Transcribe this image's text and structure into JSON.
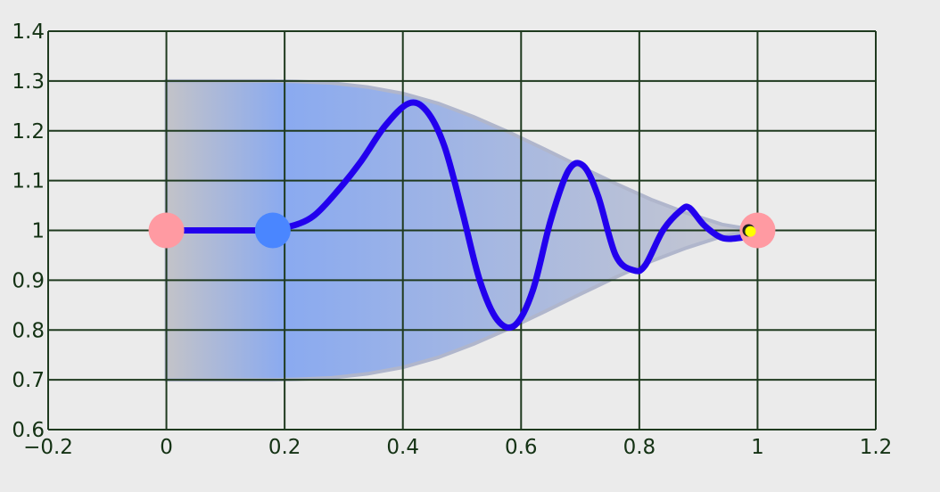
{
  "chart_data": {
    "type": "line",
    "title": "",
    "xlabel": "",
    "ylabel": "",
    "xlim": [
      -0.2,
      1.2
    ],
    "ylim": [
      0.6,
      1.4
    ],
    "grid": true,
    "x_ticks": [
      -0.2,
      0,
      0.2,
      0.4,
      0.6,
      0.8,
      1,
      1.2
    ],
    "x_tick_labels": [
      "−0.2",
      "0",
      "0.2",
      "0.4",
      "0.6",
      "0.8",
      "1",
      "1.2"
    ],
    "y_ticks": [
      0.6,
      0.7,
      0.8,
      0.9,
      1,
      1.1,
      1.2,
      1.3,
      1.4
    ],
    "y_tick_labels": [
      "0.6",
      "0.7",
      "0.8",
      "0.9",
      "1",
      "1.1",
      "1.2",
      "1.3",
      "1.4"
    ],
    "envelope": {
      "x": [
        0,
        0.18,
        0.22,
        0.28,
        0.34,
        0.4,
        0.46,
        0.52,
        0.58,
        0.64,
        0.7,
        0.76,
        0.82,
        0.88,
        0.94,
        1.0
      ],
      "upper": [
        1.3,
        1.3,
        1.299,
        1.296,
        1.288,
        1.275,
        1.255,
        1.228,
        1.197,
        1.163,
        1.128,
        1.094,
        1.062,
        1.035,
        1.012,
        1.0
      ],
      "lower": [
        0.7,
        0.7,
        0.701,
        0.704,
        0.712,
        0.725,
        0.745,
        0.772,
        0.803,
        0.837,
        0.872,
        0.906,
        0.938,
        0.965,
        0.988,
        1.0
      ]
    },
    "series": [
      {
        "x": [
          0,
          0.18,
          0.21,
          0.25,
          0.29,
          0.33,
          0.37,
          0.41,
          0.44,
          0.47,
          0.5,
          0.53,
          0.56,
          0.59,
          0.62,
          0.65,
          0.68,
          0.705,
          0.73,
          0.76,
          0.79,
          0.81,
          0.84,
          0.87,
          0.885,
          0.91,
          0.94,
          0.97,
          0.985
        ],
        "y": [
          1.0,
          1.0,
          1.005,
          1.03,
          1.08,
          1.14,
          1.21,
          1.255,
          1.24,
          1.17,
          1.04,
          0.9,
          0.82,
          0.81,
          0.88,
          1.02,
          1.12,
          1.13,
          1.07,
          0.95,
          0.92,
          0.93,
          1.0,
          1.04,
          1.045,
          1.01,
          0.985,
          0.985,
          0.99
        ],
        "color": "#2200ee"
      }
    ],
    "markers": [
      {
        "x": 0,
        "y": 1.0,
        "color": "#ff9aa2",
        "radius": 20
      },
      {
        "x": 0.18,
        "y": 1.0,
        "color": "#4a86ff",
        "radius": 20
      },
      {
        "x": 1.0,
        "y": 1.0,
        "color": "#ff9aa2",
        "radius": 20
      },
      {
        "x": 0.985,
        "y": 1.0,
        "color": "#222222",
        "radius": 7
      },
      {
        "x": 0.988,
        "y": 0.998,
        "color": "#ffff00",
        "radius": 6
      }
    ],
    "colors": {
      "grid": "#1f3a1f",
      "tick_text": "#143214",
      "envelope_gray": "#c3c3c8",
      "envelope_blue": "#8aaaf0",
      "envelope_edge": "#b0b6cc"
    }
  }
}
